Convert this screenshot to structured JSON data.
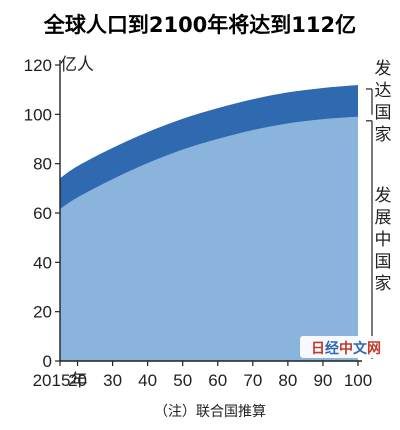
{
  "chart_data": {
    "type": "area",
    "title": "全球人口到2100年将达到112亿",
    "unit": "亿人",
    "x_tick_labels": [
      "2015年",
      "20",
      "30",
      "40",
      "50",
      "60",
      "70",
      "80",
      "90",
      "100"
    ],
    "x": [
      2015,
      2020,
      2030,
      2040,
      2050,
      2060,
      2070,
      2080,
      2090,
      2100
    ],
    "ylim": [
      0,
      120
    ],
    "y_ticks": [
      0,
      20,
      40,
      60,
      80,
      100,
      120
    ],
    "stacked": true,
    "series": [
      {
        "name": "发展中国家",
        "color": "#8ab4dc",
        "values": [
          61.6,
          66.3,
          73.7,
          80.2,
          85.7,
          90.0,
          93.6,
          96.3,
          98.0,
          99.0
        ]
      },
      {
        "name": "发达国家",
        "color": "#2f69b0",
        "values": [
          12.5,
          12.7,
          12.7,
          12.6,
          12.5,
          12.5,
          12.5,
          12.6,
          12.7,
          12.9
        ]
      }
    ],
    "note": "（注）联合国推算",
    "watermark": "日经中文网"
  }
}
